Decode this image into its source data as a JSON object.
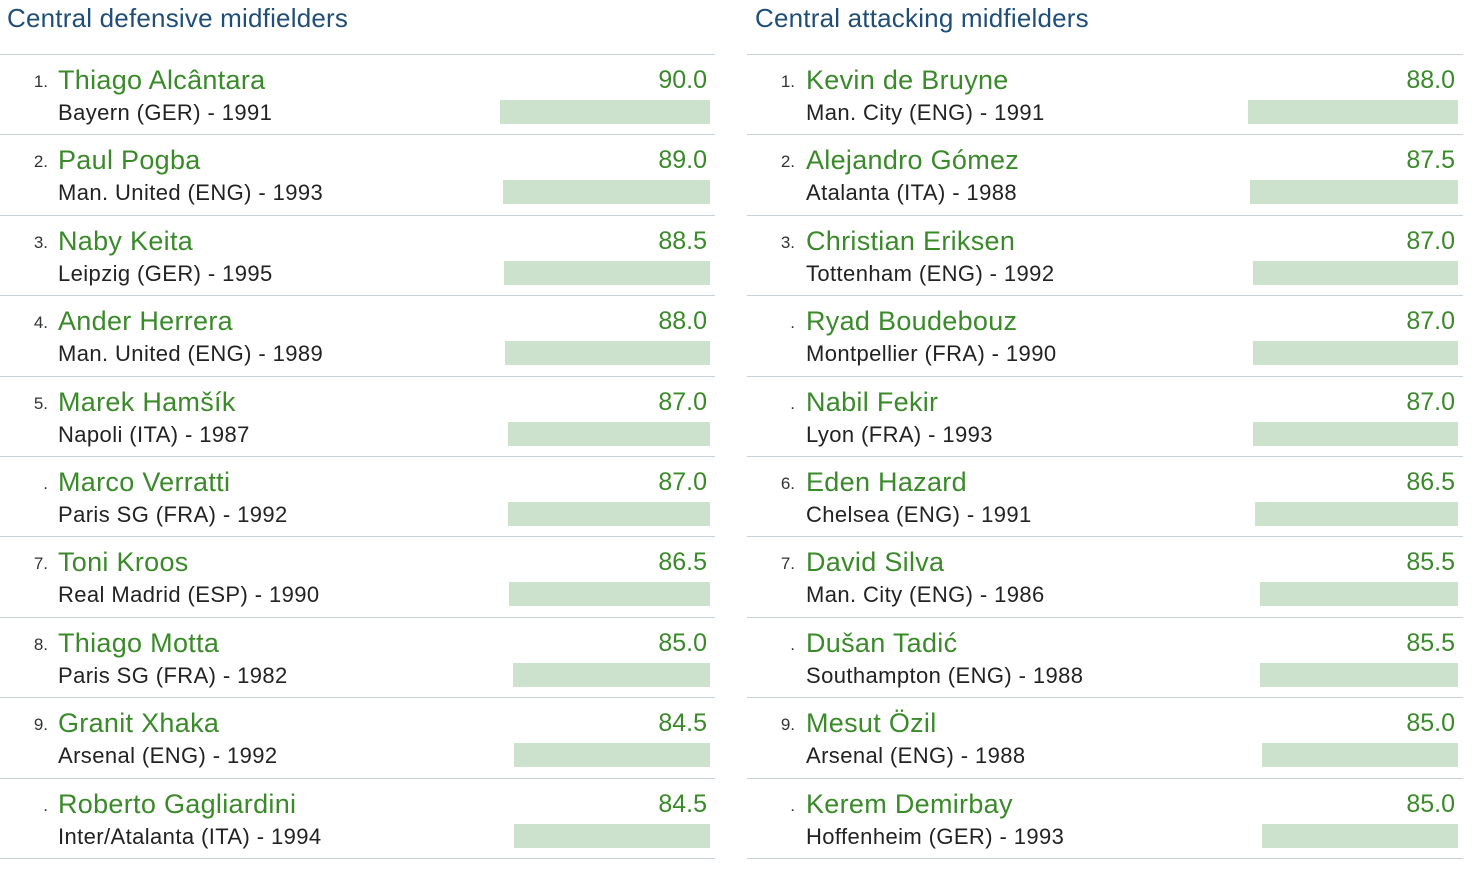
{
  "colors": {
    "title": "#1f4e79",
    "name": "#3a8a2a",
    "score": "#3a8a2a",
    "bar": "#cde2cd",
    "divider": "#c8d0d8"
  },
  "chart_data": [
    {
      "type": "bar",
      "orientation": "horizontal",
      "title": "Central defensive midfielders",
      "xlim": [
        0,
        90
      ],
      "grid": false,
      "rows": [
        {
          "rank": "1.",
          "name": "Thiago Alcântara",
          "club": "Bayern (GER) - 1991",
          "score": "90.0",
          "value": 90.0
        },
        {
          "rank": "2.",
          "name": "Paul Pogba",
          "club": "Man. United (ENG) - 1993",
          "score": "89.0",
          "value": 89.0
        },
        {
          "rank": "3.",
          "name": "Naby Keita",
          "club": "Leipzig (GER) - 1995",
          "score": "88.5",
          "value": 88.5
        },
        {
          "rank": "4.",
          "name": "Ander Herrera",
          "club": "Man. United (ENG) - 1989",
          "score": "88.0",
          "value": 88.0
        },
        {
          "rank": "5.",
          "name": "Marek Hamšík",
          "club": "Napoli (ITA) - 1987",
          "score": "87.0",
          "value": 87.0
        },
        {
          "rank": ".",
          "name": "Marco Verratti",
          "club": "Paris SG (FRA) - 1992",
          "score": "87.0",
          "value": 87.0
        },
        {
          "rank": "7.",
          "name": "Toni Kroos",
          "club": "Real Madrid (ESP) - 1990",
          "score": "86.5",
          "value": 86.5
        },
        {
          "rank": "8.",
          "name": "Thiago Motta",
          "club": "Paris SG (FRA) - 1982",
          "score": "85.0",
          "value": 85.0
        },
        {
          "rank": "9.",
          "name": "Granit Xhaka",
          "club": "Arsenal (ENG) - 1992",
          "score": "84.5",
          "value": 84.5
        },
        {
          "rank": ".",
          "name": "Roberto Gagliardini",
          "club": "Inter/Atalanta (ITA) - 1994",
          "score": "84.5",
          "value": 84.5
        }
      ]
    },
    {
      "type": "bar",
      "orientation": "horizontal",
      "title": "Central attacking midfielders",
      "xlim": [
        0,
        90
      ],
      "grid": false,
      "rows": [
        {
          "rank": "1.",
          "name": "Kevin de Bruyne",
          "club": "Man. City (ENG) - 1991",
          "score": "88.0",
          "value": 88.0
        },
        {
          "rank": "2.",
          "name": "Alejandro Gómez",
          "club": "Atalanta (ITA) - 1988",
          "score": "87.5",
          "value": 87.5
        },
        {
          "rank": "3.",
          "name": "Christian Eriksen",
          "club": "Tottenham (ENG) - 1992",
          "score": "87.0",
          "value": 87.0
        },
        {
          "rank": ".",
          "name": "Ryad Boudebouz",
          "club": "Montpellier (FRA) - 1990",
          "score": "87.0",
          "value": 87.0
        },
        {
          "rank": ".",
          "name": "Nabil Fekir",
          "club": "Lyon (FRA) - 1993",
          "score": "87.0",
          "value": 87.0
        },
        {
          "rank": "6.",
          "name": "Eden Hazard",
          "club": "Chelsea (ENG) - 1991",
          "score": "86.5",
          "value": 86.5
        },
        {
          "rank": "7.",
          "name": "David Silva",
          "club": "Man. City (ENG) - 1986",
          "score": "85.5",
          "value": 85.5
        },
        {
          "rank": ".",
          "name": "Dušan Tadić",
          "club": "Southampton (ENG) - 1988",
          "score": "85.5",
          "value": 85.5
        },
        {
          "rank": "9.",
          "name": "Mesut Özil",
          "club": "Arsenal (ENG) - 1988",
          "score": "85.0",
          "value": 85.0
        },
        {
          "rank": ".",
          "name": "Kerem Demirbay",
          "club": "Hoffenheim (GER) - 1993",
          "score": "85.0",
          "value": 85.0
        }
      ]
    }
  ]
}
